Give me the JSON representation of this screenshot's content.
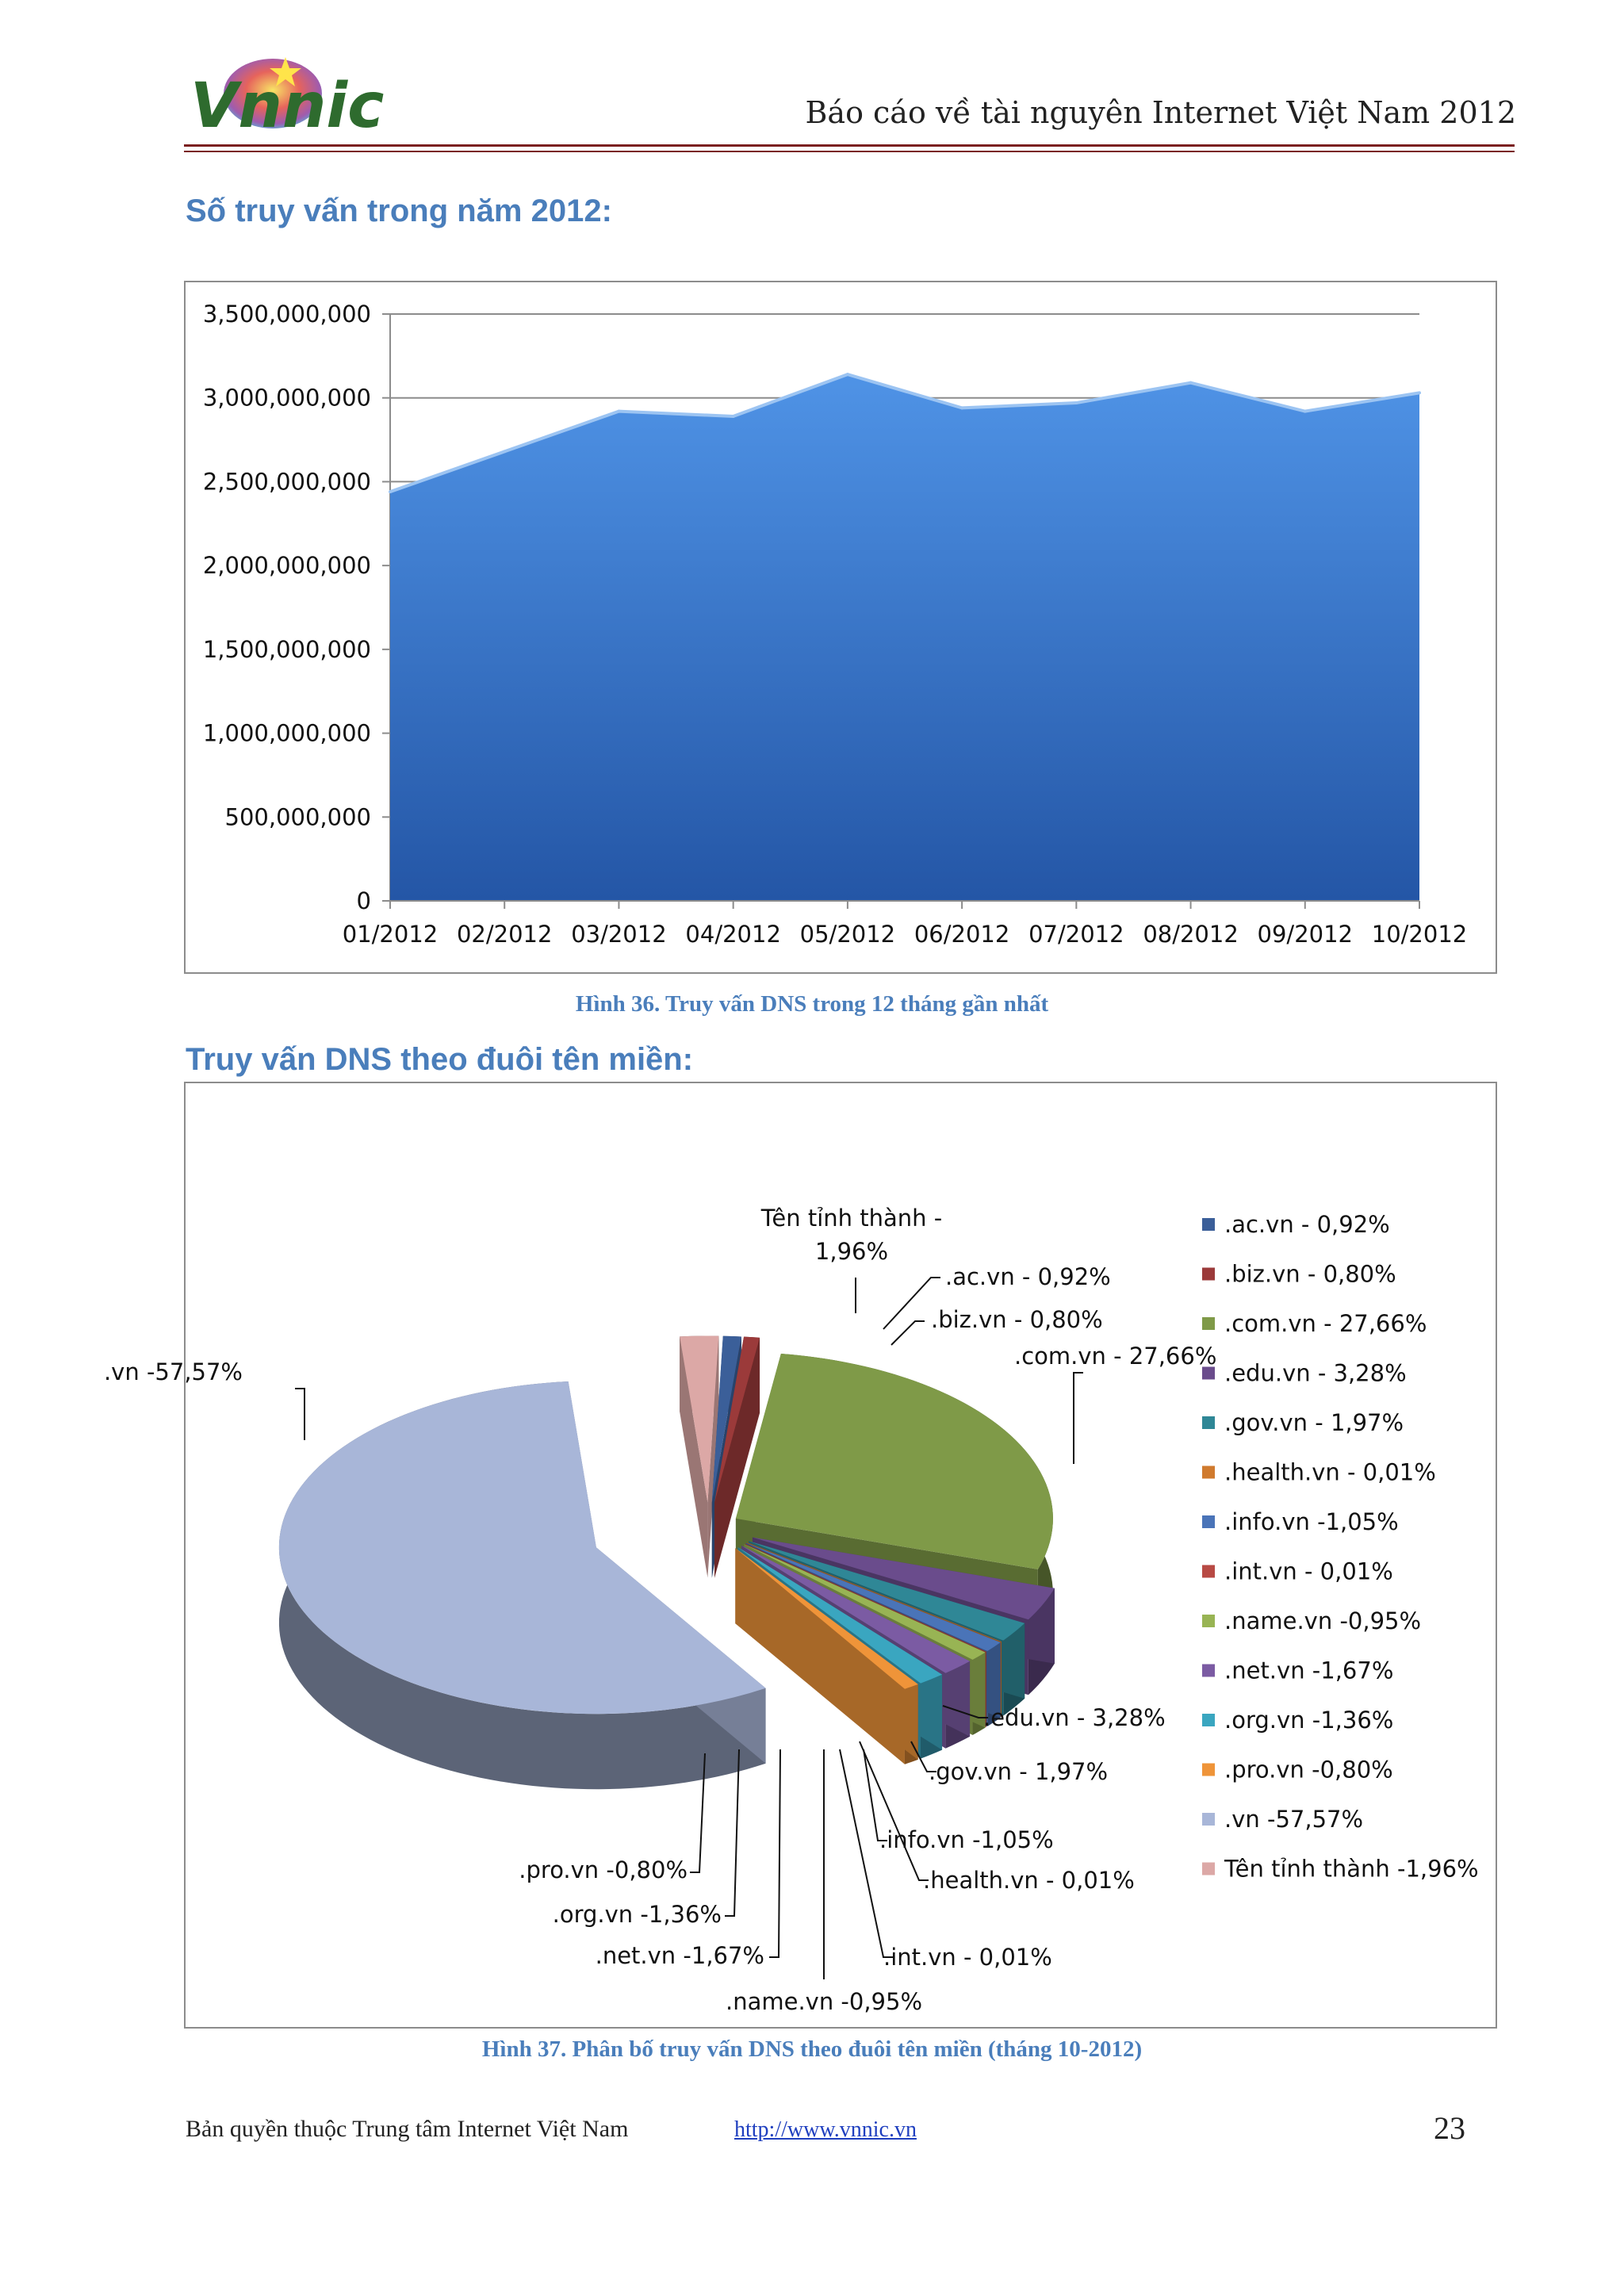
{
  "header": {
    "title": "Báo cáo về tài nguyên Internet Việt Nam 2012",
    "logo_text": "Vnnic",
    "logo_icon": "vnnic-logo"
  },
  "section1": {
    "heading": "Số truy vấn trong năm 2012:",
    "caption": "Hình 36. Truy vấn DNS trong 12 tháng gần nhất"
  },
  "section2": {
    "heading": "Truy vấn DNS theo đuôi tên miền:",
    "caption": "Hình 37. Phân bố truy vấn DNS theo đuôi tên miền (tháng 10-2012)"
  },
  "footer": {
    "copyright": "Bản quyền thuộc Trung tâm Internet Việt Nam",
    "link": "http://www.vnnic.vn",
    "page_number": "23"
  },
  "chart_data": [
    {
      "type": "area",
      "title": "",
      "xlabel": "",
      "ylabel": "",
      "categories": [
        "01/2012",
        "02/2012",
        "03/2012",
        "04/2012",
        "05/2012",
        "06/2012",
        "07/2012",
        "08/2012",
        "09/2012",
        "10/2012"
      ],
      "values": [
        2440000000,
        2680000000,
        2920000000,
        2890000000,
        3140000000,
        2940000000,
        2970000000,
        3090000000,
        2920000000,
        3030000000
      ],
      "ylim": [
        0,
        3500000000
      ],
      "yticks": [
        "0",
        "500,000,000",
        "1,000,000,000",
        "1,500,000,000",
        "2,000,000,000",
        "2,500,000,000",
        "3,000,000,000",
        "3,500,000,000"
      ],
      "grid": true,
      "color": "#4a86d8"
    },
    {
      "type": "pie",
      "title": "",
      "legend_placement": "right",
      "slices": [
        {
          "name": ".ac.vn",
          "value": 0.92,
          "label": ".ac.vn - 0,92%",
          "legend": ".ac.vn - 0,92%",
          "color": "#3b5f99"
        },
        {
          "name": ".biz.vn",
          "value": 0.8,
          "label": ".biz.vn - 0,80%",
          "legend": ".biz.vn - 0,80%",
          "color": "#9b3a3a"
        },
        {
          "name": ".com.vn",
          "value": 27.66,
          "label": ".com.vn - 27,66%",
          "legend": ".com.vn - 27,66%",
          "color": "#7f9a48"
        },
        {
          "name": ".edu.vn",
          "value": 3.28,
          "label": ".edu.vn - 3,28%",
          "legend": ".edu.vn - 3,28%",
          "color": "#6a4c8c"
        },
        {
          "name": ".gov.vn",
          "value": 1.97,
          "label": ".gov.vn - 1,97%",
          "legend": ".gov.vn - 1,97%",
          "color": "#2f8796"
        },
        {
          "name": ".health.vn",
          "value": 0.01,
          "label": ".health.vn - 0,01%",
          "legend": ".health.vn - 0,01%",
          "color": "#d07a2e"
        },
        {
          "name": ".info.vn",
          "value": 1.05,
          "label": ".info.vn -1,05%",
          "legend": ".info.vn -1,05%",
          "color": "#4a74b8"
        },
        {
          "name": ".int.vn",
          "value": 0.01,
          "label": ".int.vn - 0,01%",
          "legend": ".int.vn - 0,01%",
          "color": "#b84a44"
        },
        {
          "name": ".name.vn",
          "value": 0.95,
          "label": ".name.vn -0,95%",
          "legend": ".name.vn -0,95%",
          "color": "#98b454"
        },
        {
          "name": ".net.vn",
          "value": 1.67,
          "label": ".net.vn -1,67%",
          "legend": ".net.vn -1,67%",
          "color": "#7b5ba3"
        },
        {
          "name": ".org.vn",
          "value": 1.36,
          "label": ".org.vn -1,36%",
          "legend": ".org.vn -1,36%",
          "color": "#3aa6c0"
        },
        {
          "name": ".pro.vn",
          "value": 0.8,
          "label": ".pro.vn -0,80%",
          "legend": ".pro.vn -0,80%",
          "color": "#ef9439"
        },
        {
          "name": ".vn",
          "value": 57.57,
          "label": ".vn -57,57%",
          "legend": ".vn -57,57%",
          "color": "#a8b6d8"
        },
        {
          "name": "Tên tỉnh thành",
          "value": 1.96,
          "label_line1": "Tên tỉnh thành -",
          "label_line2": "1,96%",
          "legend": "Tên tỉnh thành -1,96%",
          "color": "#dca8a6"
        }
      ]
    }
  ]
}
